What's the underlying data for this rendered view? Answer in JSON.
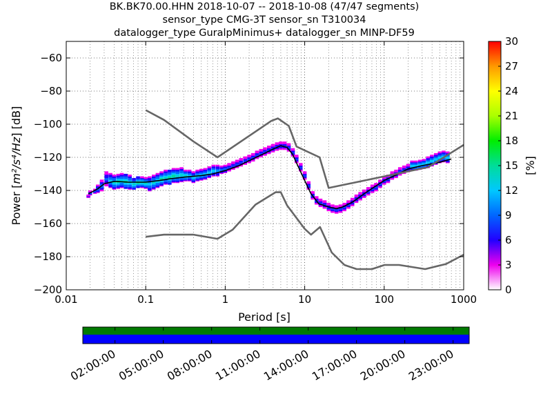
{
  "chart_data": {
    "type": "heatmap",
    "title_lines": [
      "BK.BK70.00.HHN   2018-10-07 -- 2018-10-08  (47/47 segments)",
      "sensor_type CMG-3T sensor_sn T310034",
      "datalogger_type GuralpMinimus+ datalogger_sn MINP-DF59"
    ],
    "xlabel": "Period [s]",
    "ylabel_prefix": "Power [",
    "ylabel_math": "m²/s⁴/Hz",
    "ylabel_suffix": "] [dB]",
    "xscale": "log",
    "xlim": [
      0.01,
      1000
    ],
    "ylim": [
      -200,
      -50
    ],
    "xtick_values": [
      0.01,
      0.1,
      1,
      10,
      100,
      1000
    ],
    "xtick_labels": [
      "0.01",
      "0.1",
      "1",
      "10",
      "100",
      "1000"
    ],
    "ytick_values": [
      -200,
      -180,
      -160,
      -140,
      -120,
      -100,
      -80,
      -60
    ],
    "ytick_labels": [
      "−200",
      "−180",
      "−160",
      "−140",
      "−120",
      "−100",
      "−80",
      "−60"
    ],
    "grid": true,
    "colorbar": {
      "label": "[%]",
      "range": [
        0,
        30
      ],
      "tick_values": [
        0,
        3,
        6,
        9,
        12,
        15,
        18,
        21,
        24,
        27,
        30
      ],
      "tick_labels": [
        "0",
        "3",
        "6",
        "9",
        "12",
        "15",
        "18",
        "21",
        "24",
        "27",
        "30"
      ],
      "colors": [
        "#ffffff",
        "#ee00ee",
        "#2200ff",
        "#0066ff",
        "#00c8ff",
        "#00dd99",
        "#00ee00",
        "#aaff00",
        "#ffff00",
        "#ff9900",
        "#ff0000"
      ]
    },
    "noise_model_high": {
      "x": [
        0.1,
        0.17,
        0.4,
        0.8,
        3.8,
        4.6,
        6.3,
        7.9,
        15.4,
        20,
        354.8,
        1000
      ],
      "y": [
        -91.5,
        -97.4,
        -110.5,
        -120,
        -98,
        -96.5,
        -101,
        -113.5,
        -120,
        -138.5,
        -126,
        -112.5
      ]
    },
    "noise_model_low": {
      "x": [
        0.1,
        0.17,
        0.4,
        0.8,
        1.24,
        2.4,
        4.3,
        5,
        6,
        10,
        12,
        15.6,
        21.9,
        31.6,
        45,
        70,
        101,
        154,
        328,
        600,
        1000
      ],
      "y": [
        -168,
        -166.7,
        -166.7,
        -169.2,
        -163.7,
        -148.6,
        -141.1,
        -141.1,
        -149,
        -163.2,
        -166.7,
        -162.1,
        -177.5,
        -185,
        -187.5,
        -187.5,
        -185,
        -185,
        -187.5,
        -184.4,
        -178.8
      ]
    },
    "mode_curve": {
      "x": [
        0.019,
        0.025,
        0.03,
        0.04,
        0.06,
        0.1,
        0.15,
        0.2,
        0.3,
        0.5,
        0.7,
        1,
        1.5,
        2,
        3,
        4,
        5,
        6,
        7,
        8,
        10,
        12,
        15,
        20,
        25,
        30,
        40,
        60,
        100,
        150,
        200,
        300,
        500,
        700
      ],
      "y": [
        -142,
        -139,
        -136,
        -134.5,
        -135,
        -135,
        -134,
        -133,
        -132,
        -131,
        -130,
        -128,
        -125,
        -122,
        -118,
        -115,
        -113,
        -114,
        -118,
        -124,
        -134,
        -142,
        -148,
        -150,
        -151,
        -150,
        -147,
        -141,
        -134,
        -130,
        -127,
        -125,
        -123,
        -121
      ]
    },
    "psd_spread": [
      {
        "x": 0.019,
        "y": -143.5,
        "w": 0.5,
        "c": 5
      },
      {
        "x": 0.02,
        "y": -141.5,
        "w": 1,
        "c": 10
      },
      {
        "x": 0.023,
        "y": -140.5,
        "w": 1,
        "c": 10
      },
      {
        "x": 0.025,
        "y": -139,
        "w": 2,
        "c": 10
      },
      {
        "x": 0.028,
        "y": -137,
        "w": 3,
        "c": 10
      },
      {
        "x": 0.032,
        "y": -133,
        "w": 4,
        "c": 9
      },
      {
        "x": 0.036,
        "y": -134,
        "w": 4,
        "c": 12
      },
      {
        "x": 0.04,
        "y": -135,
        "w": 4,
        "c": 14
      },
      {
        "x": 0.045,
        "y": -134.5,
        "w": 4,
        "c": 15
      },
      {
        "x": 0.05,
        "y": -134,
        "w": 4,
        "c": 14
      },
      {
        "x": 0.056,
        "y": -134.5,
        "w": 4,
        "c": 16
      },
      {
        "x": 0.063,
        "y": -135,
        "w": 4,
        "c": 14
      },
      {
        "x": 0.071,
        "y": -136,
        "w": 3,
        "c": 15
      },
      {
        "x": 0.08,
        "y": -135,
        "w": 3,
        "c": 16
      },
      {
        "x": 0.09,
        "y": -135,
        "w": 3,
        "c": 14
      },
      {
        "x": 0.1,
        "y": -135.5,
        "w": 3,
        "c": 14
      },
      {
        "x": 0.112,
        "y": -136,
        "w": 4,
        "c": 12
      },
      {
        "x": 0.126,
        "y": -135,
        "w": 4,
        "c": 14
      },
      {
        "x": 0.141,
        "y": -134,
        "w": 4,
        "c": 14
      },
      {
        "x": 0.158,
        "y": -133,
        "w": 4,
        "c": 15
      },
      {
        "x": 0.178,
        "y": -132,
        "w": 4,
        "c": 14
      },
      {
        "x": 0.2,
        "y": -132,
        "w": 4,
        "c": 16
      },
      {
        "x": 0.224,
        "y": -131,
        "w": 4,
        "c": 15
      },
      {
        "x": 0.251,
        "y": -131,
        "w": 4,
        "c": 14
      },
      {
        "x": 0.282,
        "y": -130.5,
        "w": 4,
        "c": 14
      },
      {
        "x": 0.316,
        "y": -131,
        "w": 3,
        "c": 14
      },
      {
        "x": 0.355,
        "y": -131,
        "w": 3,
        "c": 13
      },
      {
        "x": 0.398,
        "y": -132,
        "w": 3,
        "c": 12
      },
      {
        "x": 0.447,
        "y": -131,
        "w": 3,
        "c": 12
      },
      {
        "x": 0.5,
        "y": -130.5,
        "w": 3,
        "c": 13
      },
      {
        "x": 0.56,
        "y": -130,
        "w": 3,
        "c": 12
      },
      {
        "x": 0.63,
        "y": -129,
        "w": 3,
        "c": 12
      },
      {
        "x": 0.71,
        "y": -128,
        "w": 3,
        "c": 12
      },
      {
        "x": 0.8,
        "y": -128,
        "w": 3,
        "c": 11
      },
      {
        "x": 0.9,
        "y": -127.5,
        "w": 2,
        "c": 9
      },
      {
        "x": 1,
        "y": -127,
        "w": 2,
        "c": 9
      },
      {
        "x": 1.12,
        "y": -126,
        "w": 2,
        "c": 8
      },
      {
        "x": 1.26,
        "y": -125,
        "w": 2,
        "c": 8
      },
      {
        "x": 1.41,
        "y": -124,
        "w": 2,
        "c": 8
      },
      {
        "x": 1.58,
        "y": -123,
        "w": 2,
        "c": 8
      },
      {
        "x": 1.78,
        "y": -122,
        "w": 2,
        "c": 8
      },
      {
        "x": 2,
        "y": -121,
        "w": 2,
        "c": 8
      },
      {
        "x": 2.24,
        "y": -120,
        "w": 2,
        "c": 8
      },
      {
        "x": 2.51,
        "y": -118.5,
        "w": 2,
        "c": 8
      },
      {
        "x": 2.82,
        "y": -117.5,
        "w": 2,
        "c": 8
      },
      {
        "x": 3.16,
        "y": -116.5,
        "w": 2,
        "c": 8
      },
      {
        "x": 3.55,
        "y": -115.5,
        "w": 2,
        "c": 8
      },
      {
        "x": 3.98,
        "y": -114.5,
        "w": 2,
        "c": 8
      },
      {
        "x": 4.47,
        "y": -113.5,
        "w": 2,
        "c": 8
      },
      {
        "x": 5,
        "y": -113,
        "w": 2,
        "c": 8
      },
      {
        "x": 5.6,
        "y": -113,
        "w": 2,
        "c": 8
      },
      {
        "x": 6.3,
        "y": -114,
        "w": 2,
        "c": 8
      },
      {
        "x": 7.1,
        "y": -117,
        "w": 2,
        "c": 8
      },
      {
        "x": 7.9,
        "y": -121,
        "w": 2,
        "c": 8
      },
      {
        "x": 8.9,
        "y": -126,
        "w": 2,
        "c": 8
      },
      {
        "x": 10,
        "y": -131,
        "w": 2,
        "c": 8
      },
      {
        "x": 11.2,
        "y": -137,
        "w": 2,
        "c": 8
      },
      {
        "x": 12.6,
        "y": -143,
        "w": 2,
        "c": 8
      },
      {
        "x": 14.1,
        "y": -146,
        "w": 2,
        "c": 8
      },
      {
        "x": 15.8,
        "y": -147.5,
        "w": 2,
        "c": 8
      },
      {
        "x": 17.8,
        "y": -148.5,
        "w": 2,
        "c": 8
      },
      {
        "x": 20,
        "y": -150,
        "w": 2,
        "c": 8
      },
      {
        "x": 22.4,
        "y": -151,
        "w": 2,
        "c": 8
      },
      {
        "x": 25.1,
        "y": -151.5,
        "w": 2,
        "c": 8
      },
      {
        "x": 28.2,
        "y": -151,
        "w": 2,
        "c": 8
      },
      {
        "x": 31.6,
        "y": -150,
        "w": 2,
        "c": 8
      },
      {
        "x": 35.5,
        "y": -148.5,
        "w": 2,
        "c": 8
      },
      {
        "x": 39.8,
        "y": -147,
        "w": 2,
        "c": 8
      },
      {
        "x": 44.7,
        "y": -145,
        "w": 2,
        "c": 8
      },
      {
        "x": 50,
        "y": -143.5,
        "w": 2,
        "c": 8
      },
      {
        "x": 56,
        "y": -142,
        "w": 2,
        "c": 8
      },
      {
        "x": 63,
        "y": -140.5,
        "w": 2,
        "c": 8
      },
      {
        "x": 71,
        "y": -139,
        "w": 2,
        "c": 8
      },
      {
        "x": 79,
        "y": -138,
        "w": 2,
        "c": 8
      },
      {
        "x": 89,
        "y": -136,
        "w": 2,
        "c": 8
      },
      {
        "x": 100,
        "y": -134,
        "w": 2,
        "c": 8
      },
      {
        "x": 112,
        "y": -133,
        "w": 2,
        "c": 8
      },
      {
        "x": 126,
        "y": -131,
        "w": 2,
        "c": 8
      },
      {
        "x": 141,
        "y": -130,
        "w": 2,
        "c": 8
      },
      {
        "x": 158,
        "y": -128.5,
        "w": 2,
        "c": 8
      },
      {
        "x": 178,
        "y": -127.5,
        "w": 2,
        "c": 8
      },
      {
        "x": 200,
        "y": -126.5,
        "w": 2,
        "c": 8
      },
      {
        "x": 224,
        "y": -125,
        "w": 2.5,
        "c": 13
      },
      {
        "x": 251,
        "y": -125,
        "w": 2.5,
        "c": 13
      },
      {
        "x": 282,
        "y": -124.5,
        "w": 2.5,
        "c": 13
      },
      {
        "x": 316,
        "y": -124,
        "w": 2.5,
        "c": 13
      },
      {
        "x": 355,
        "y": -123,
        "w": 3,
        "c": 13
      },
      {
        "x": 398,
        "y": -122,
        "w": 3,
        "c": 13
      },
      {
        "x": 447,
        "y": -121,
        "w": 3,
        "c": 13
      },
      {
        "x": 500,
        "y": -120,
        "w": 3,
        "c": 13
      },
      {
        "x": 560,
        "y": -119.5,
        "w": 3,
        "c": 13
      },
      {
        "x": 630,
        "y": -120,
        "w": 3,
        "c": 13
      }
    ],
    "availability": {
      "xtick_labels": [
        "02:00:00",
        "05:00:00",
        "08:00:00",
        "11:00:00",
        "14:00:00",
        "17:00:00",
        "20:00:00",
        "23:00:00"
      ],
      "xtick_hours": [
        2,
        5,
        8,
        11,
        14,
        17,
        20,
        23
      ],
      "range_hours": [
        0,
        24
      ],
      "top_band_color": "#007a00",
      "bottom_band_color": "#0000ff"
    }
  }
}
